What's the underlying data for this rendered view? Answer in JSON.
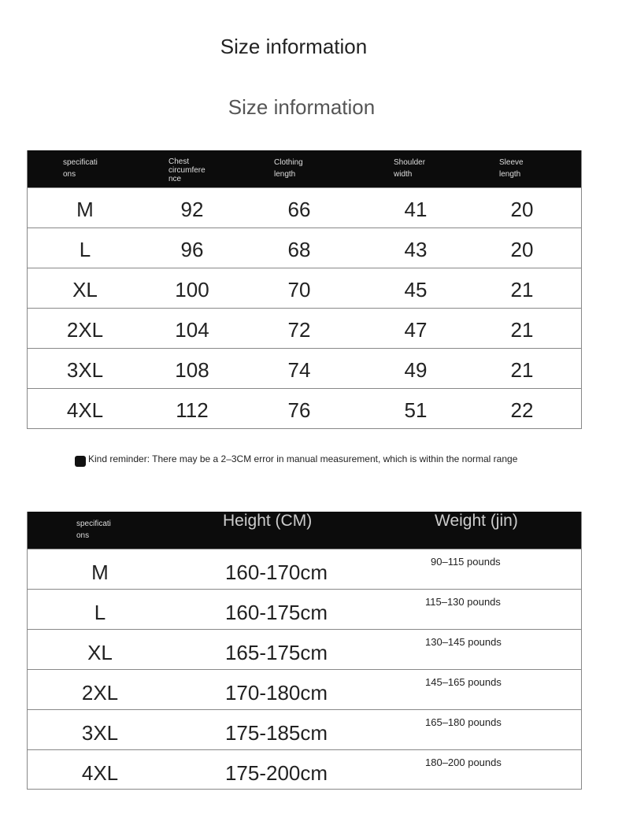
{
  "title": "Size information",
  "subtitle": "Size information",
  "table1": {
    "headers": [
      "specificati\nons",
      "Chest\ncircumfere\nnce",
      "Clothing\nlength",
      "Shoulder\nwidth",
      "Sleeve\nlength"
    ],
    "rows": [
      [
        "M",
        "92",
        "66",
        "41",
        "20"
      ],
      [
        "L",
        "96",
        "68",
        "43",
        "20"
      ],
      [
        "XL",
        "100",
        "70",
        "45",
        "21"
      ],
      [
        "2XL",
        "104",
        "72",
        "47",
        "21"
      ],
      [
        "3XL",
        "108",
        "74",
        "49",
        "21"
      ],
      [
        "4XL",
        "112",
        "76",
        "51",
        "22"
      ]
    ]
  },
  "reminder": "Kind reminder: There may be a 2–3CM error in manual measurement, which is within the normal range",
  "table2": {
    "headers": [
      "specificati\nons",
      "Height (CM)",
      "Weight (jin)"
    ],
    "rows": [
      [
        "M",
        "160-170cm",
        "90–115 pounds"
      ],
      [
        "L",
        "160-175cm",
        "115–130 pounds"
      ],
      [
        "XL",
        "165-175cm",
        "130–145 pounds"
      ],
      [
        "2XL",
        "170-180cm",
        "145–165 pounds"
      ],
      [
        "3XL",
        "175-185cm",
        "165–180 pounds"
      ],
      [
        "4XL",
        "175-200cm",
        "180–200 pounds"
      ]
    ]
  }
}
